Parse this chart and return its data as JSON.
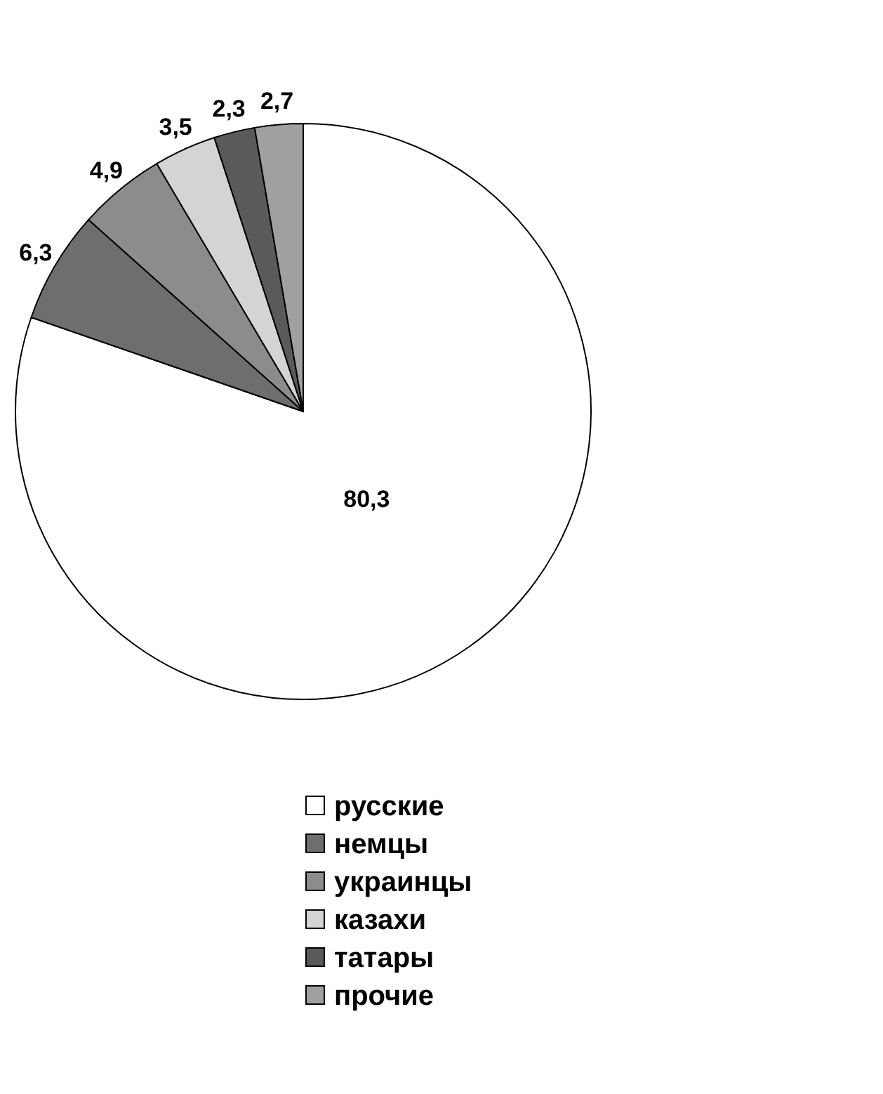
{
  "chart_data": {
    "type": "pie",
    "categories": [
      "русские",
      "немцы",
      "украинцы",
      "казахи",
      "татары",
      "прочие"
    ],
    "values": [
      80.3,
      6.3,
      4.9,
      3.5,
      2.3,
      2.7
    ],
    "value_labels": [
      "80,3",
      "6,3",
      "4,9",
      "3,5",
      "2,3",
      "2,7"
    ],
    "colors": [
      "#ffffff",
      "#6e6e6e",
      "#8c8c8c",
      "#d4d4d4",
      "#5a5a5a",
      "#a0a0a0"
    ],
    "legend": "bottom"
  }
}
